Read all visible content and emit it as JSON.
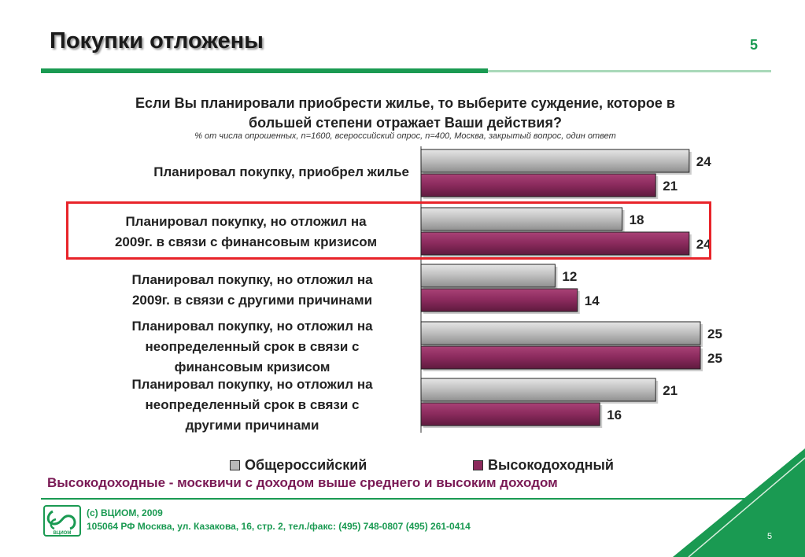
{
  "slide": {
    "title": "Покупки отложены",
    "page_number": "5",
    "question": "Если Вы планировали приобрести жилье, то выберите суждение, которое в большей степени отражает Ваши действия?",
    "note": "% от числа опрошенных, n=1600, всероссийский опрос, n=400,  Москва, закрытый вопрос, один ответ",
    "footnote": "Высокодоходные  - москвичи с доходом выше среднего и высоким доходом",
    "copyright_line1": "(с) ВЦИОМ, 2009",
    "copyright_line2": "105064 РФ Москва, ул. Казакова, 16, стр. 2, тел./факс: (495) 748-0807 (495) 261-0414",
    "logo_text": "ВЦИОМ",
    "colors": {
      "accent_green": "#1a9a52",
      "highlight_red": "#e8242a",
      "series_gray": "#b8b8b8",
      "series_purple": "#8b2a5c"
    }
  },
  "chart_data": {
    "type": "bar",
    "orientation": "horizontal",
    "categories": [
      "Планировал покупку, приобрел жилье",
      "Планировал покупку, но отложил на 2009г. в связи с финансовым кризисом",
      "Планировал покупку, но отложил на 2009г. в связи с другими причинами",
      "Планировал покупку, но отложил на неопределенный срок в связи с финансовым кризисом",
      "Планировал покупку, но отложил на неопределенный срок в связи с другими причинами"
    ],
    "series": [
      {
        "name": "Общероссийский",
        "values": [
          24,
          18,
          12,
          25,
          21
        ],
        "color": "#b8b8b8"
      },
      {
        "name": "Высокодоходный",
        "values": [
          21,
          24,
          14,
          25,
          16
        ],
        "color": "#8b2a5c"
      }
    ],
    "xlim": [
      0,
      25
    ],
    "highlighted_category": 1,
    "legend_position": "bottom"
  }
}
